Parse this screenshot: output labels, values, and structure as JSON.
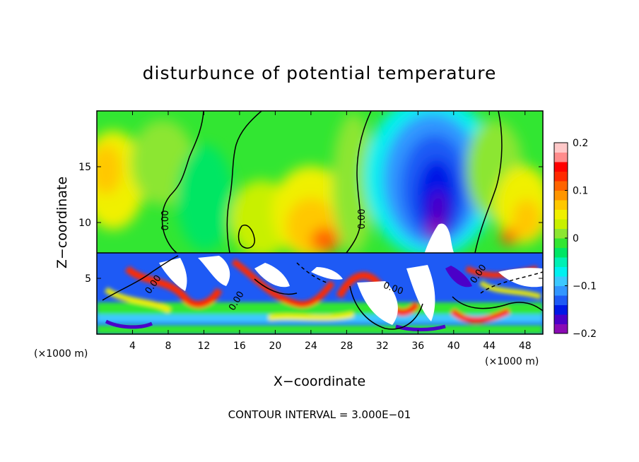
{
  "chart_data": {
    "type": "heatmap",
    "title": "disturbunce of potential temperature",
    "xlabel": "X−coordinate",
    "ylabel": "Z−coordinate",
    "x_unit_left": "(×1000 m)",
    "x_unit_right": "(×1000 m)",
    "xlim": [
      0,
      50
    ],
    "ylim": [
      0,
      20
    ],
    "x_ticks": [
      4,
      8,
      12,
      16,
      20,
      24,
      28,
      32,
      36,
      40,
      44,
      48
    ],
    "y_ticks": [
      5,
      10,
      15
    ],
    "colorbar": {
      "range": [
        -0.2,
        0.2
      ],
      "tick_values": [
        0.2,
        0.1,
        0,
        -0.1,
        -0.2
      ],
      "tick_labels": [
        "0.2",
        "0.1",
        "0",
        "−0.1",
        "−0.2"
      ],
      "colors": [
        "#8a0ab4",
        "#4b00c8",
        "#0018e6",
        "#1e5af5",
        "#3296ff",
        "#3cc8ff",
        "#00f0f0",
        "#00f0b4",
        "#00e664",
        "#32e632",
        "#8ce632",
        "#c8f000",
        "#f0f000",
        "#ffc800",
        "#ff9600",
        "#ff6400",
        "#ff2a00",
        "#ff0000",
        "#ff8c8c",
        "#ffc8c8"
      ]
    },
    "contour_label": "0.00",
    "contour_labels_extra": [
      "0.00",
      "0.00",
      "0.00",
      "0.00",
      "0.00"
    ],
    "contour_interval_text": "CONTOUR INTERVAL = 3.000E−01",
    "features": [
      {
        "kind": "cold-anomaly",
        "x_center": 38,
        "z_center": 11,
        "min_value": -0.2
      },
      {
        "kind": "warm-anomaly",
        "x_center": 25,
        "z_center": 11,
        "max_value": 0.12
      },
      {
        "kind": "warm-anomaly",
        "x_center": 2,
        "z_center": 15,
        "max_value": 0.12
      },
      {
        "kind": "warm-anomaly",
        "x_center": 47,
        "z_center": 12,
        "max_value": 0.1
      },
      {
        "kind": "turbulent-layer",
        "z_top": 7.2,
        "z_bottom": 0
      }
    ]
  }
}
